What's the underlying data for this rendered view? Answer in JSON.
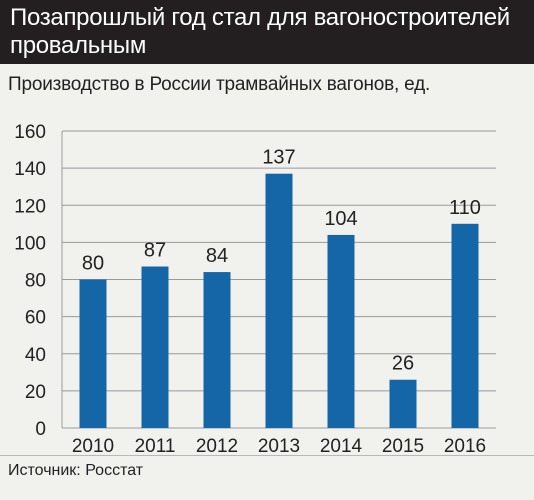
{
  "header": {
    "title": "Позапрошлый год стал для вагоностроителей провальным"
  },
  "chart_data": {
    "type": "bar",
    "title": "Позапрошлый год стал для вагоностроителей провальным",
    "subtitle": "Производство в России трамвайных вагонов, ед.",
    "categories": [
      "2010",
      "2011",
      "2012",
      "2013",
      "2014",
      "2015",
      "2016"
    ],
    "values": [
      80,
      87,
      84,
      137,
      104,
      26,
      110
    ],
    "data_labels": [
      "80",
      "87",
      "84",
      "137",
      "104",
      "26",
      "110"
    ],
    "ylim": [
      0,
      160
    ],
    "yticks": [
      0,
      20,
      40,
      60,
      80,
      100,
      120,
      140,
      160
    ],
    "ytick_labels": [
      "0",
      "20",
      "40",
      "60",
      "80",
      "100",
      "120",
      "140",
      "160"
    ],
    "grid": true,
    "bar_color": "#1466a6",
    "grid_color": "#9a9a9a"
  },
  "footer": {
    "source": "Источник: Росстат"
  }
}
